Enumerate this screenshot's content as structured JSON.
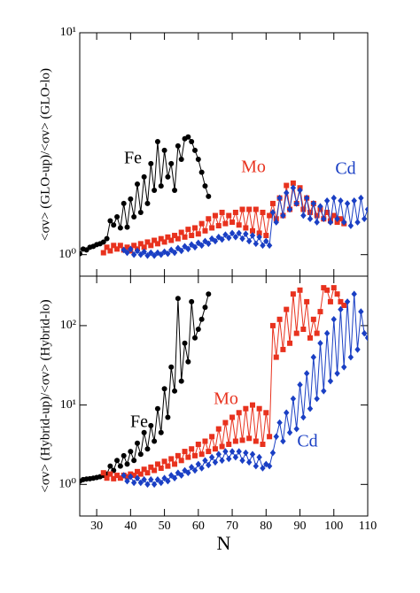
{
  "chart_data": [
    {
      "type": "line",
      "ylabel": "<σv> (GLO-up)/<σv> (GLO-lo)",
      "log_y": true,
      "xlim": [
        25,
        110
      ],
      "ylim": [
        0.8,
        10
      ],
      "yticks": [
        {
          "value": 1,
          "label": "10⁰"
        },
        {
          "value": 10,
          "label": "10¹"
        }
      ],
      "series": [
        {
          "name": "Fe",
          "color": "#000000",
          "marker": "circle",
          "x": [
            25,
            26,
            27,
            28,
            29,
            30,
            31,
            32,
            33,
            34,
            35,
            36,
            37,
            38,
            39,
            40,
            41,
            42,
            43,
            44,
            45,
            46,
            47,
            48,
            49,
            50,
            51,
            52,
            53,
            54,
            55,
            56,
            57,
            58,
            59,
            60,
            61,
            62,
            63
          ],
          "values": [
            1.01,
            1.06,
            1.05,
            1.08,
            1.09,
            1.11,
            1.12,
            1.14,
            1.18,
            1.42,
            1.36,
            1.48,
            1.32,
            1.7,
            1.33,
            1.78,
            1.48,
            2.08,
            1.55,
            2.24,
            1.7,
            2.57,
            1.95,
            3.23,
            2.04,
            2.95,
            2.24,
            2.57,
            1.95,
            3.09,
            2.69,
            3.33,
            3.39,
            3.23,
            2.95,
            2.69,
            2.35,
            2.04,
            1.83
          ]
        },
        {
          "name": "Mo",
          "color": "#e8321e",
          "marker": "square",
          "x": [
            32,
            33,
            34,
            35,
            36,
            37,
            38,
            39,
            40,
            41,
            42,
            43,
            44,
            45,
            46,
            47,
            48,
            49,
            50,
            51,
            52,
            53,
            54,
            55,
            56,
            57,
            58,
            59,
            60,
            61,
            62,
            63,
            64,
            65,
            66,
            67,
            68,
            69,
            70,
            71,
            72,
            73,
            74,
            75,
            76,
            77,
            78,
            79,
            80,
            81,
            82,
            83,
            84,
            85,
            86,
            87,
            88,
            89,
            90,
            91,
            92,
            93,
            94,
            95,
            96,
            97,
            98,
            99,
            100,
            101,
            102,
            103
          ],
          "values": [
            1.02,
            1.08,
            1.04,
            1.1,
            1.06,
            1.1,
            1.05,
            1.08,
            1.04,
            1.1,
            1.06,
            1.12,
            1.08,
            1.14,
            1.1,
            1.16,
            1.12,
            1.18,
            1.14,
            1.2,
            1.16,
            1.22,
            1.18,
            1.26,
            1.2,
            1.3,
            1.22,
            1.32,
            1.24,
            1.38,
            1.28,
            1.45,
            1.32,
            1.5,
            1.35,
            1.55,
            1.38,
            1.5,
            1.4,
            1.55,
            1.36,
            1.6,
            1.32,
            1.6,
            1.28,
            1.6,
            1.25,
            1.55,
            1.22,
            1.5,
            1.7,
            1.45,
            1.8,
            1.5,
            2.05,
            1.6,
            2.1,
            1.7,
            2.0,
            1.6,
            1.8,
            1.55,
            1.7,
            1.5,
            1.6,
            1.45,
            1.55,
            1.42,
            1.5,
            1.4,
            1.45,
            1.38
          ]
        },
        {
          "name": "Cd",
          "color": "#1a3fc4",
          "marker": "diamond",
          "x": [
            38,
            39,
            40,
            41,
            42,
            43,
            44,
            45,
            46,
            47,
            48,
            49,
            50,
            51,
            52,
            53,
            54,
            55,
            56,
            57,
            58,
            59,
            60,
            61,
            62,
            63,
            64,
            65,
            66,
            67,
            68,
            69,
            70,
            71,
            72,
            73,
            74,
            75,
            76,
            77,
            78,
            79,
            80,
            81,
            82,
            83,
            84,
            85,
            86,
            87,
            88,
            89,
            90,
            91,
            92,
            93,
            94,
            95,
            96,
            97,
            98,
            99,
            100,
            101,
            102,
            103,
            104,
            105,
            106,
            107,
            108,
            109,
            110
          ],
          "values": [
            1.05,
            1.02,
            1.06,
            1.0,
            1.04,
            1.0,
            1.03,
            0.99,
            1.02,
            0.99,
            1.02,
            1.0,
            1.03,
            1.01,
            1.05,
            1.02,
            1.07,
            1.04,
            1.09,
            1.06,
            1.11,
            1.08,
            1.13,
            1.1,
            1.15,
            1.12,
            1.18,
            1.15,
            1.2,
            1.17,
            1.23,
            1.19,
            1.25,
            1.2,
            1.25,
            1.18,
            1.24,
            1.15,
            1.22,
            1.12,
            1.2,
            1.1,
            1.15,
            1.1,
            1.55,
            1.4,
            1.8,
            1.5,
            1.9,
            1.6,
            2.0,
            1.7,
            1.95,
            1.5,
            1.8,
            1.45,
            1.7,
            1.4,
            1.65,
            1.45,
            1.75,
            1.4,
            1.8,
            1.45,
            1.75,
            1.4,
            1.7,
            1.35,
            1.75,
            1.4,
            1.8,
            1.45,
            1.6
          ]
        }
      ]
    },
    {
      "type": "line",
      "ylabel": "<σv> (Hybrid-up)/<σv> (Hybrid-lo)",
      "xlabel": "N",
      "log_y": true,
      "xlim": [
        25,
        110
      ],
      "ylim": [
        0.4,
        420
      ],
      "xticks": [
        30,
        40,
        50,
        60,
        70,
        80,
        90,
        100,
        110
      ],
      "yticks": [
        {
          "value": 1,
          "label": "10⁰"
        },
        {
          "value": 10,
          "label": "10¹"
        },
        {
          "value": 100,
          "label": "10²"
        }
      ],
      "series": [
        {
          "name": "Fe",
          "color": "#000000",
          "marker": "circle",
          "x": [
            25,
            26,
            27,
            28,
            29,
            30,
            31,
            32,
            33,
            34,
            35,
            36,
            37,
            38,
            39,
            40,
            41,
            42,
            43,
            44,
            45,
            46,
            47,
            48,
            49,
            50,
            51,
            52,
            53,
            54,
            55,
            56,
            57,
            58,
            59,
            60,
            61,
            62,
            63
          ],
          "values": [
            1.1,
            1.15,
            1.17,
            1.18,
            1.2,
            1.22,
            1.25,
            1.3,
            1.35,
            1.7,
            1.5,
            2.0,
            1.7,
            2.3,
            1.8,
            2.6,
            2.0,
            3.3,
            2.4,
            4.5,
            2.8,
            5.5,
            3.5,
            9,
            4.5,
            16,
            7,
            30,
            15,
            220,
            20,
            60,
            35,
            200,
            70,
            90,
            120,
            170,
            250
          ]
        },
        {
          "name": "Mo",
          "color": "#e8321e",
          "marker": "square",
          "x": [
            32,
            33,
            34,
            35,
            36,
            37,
            38,
            39,
            40,
            41,
            42,
            43,
            44,
            45,
            46,
            47,
            48,
            49,
            50,
            51,
            52,
            53,
            54,
            55,
            56,
            57,
            58,
            59,
            60,
            61,
            62,
            63,
            64,
            65,
            66,
            67,
            68,
            69,
            70,
            71,
            72,
            73,
            74,
            75,
            76,
            77,
            78,
            79,
            80,
            81,
            82,
            83,
            84,
            85,
            86,
            87,
            88,
            89,
            90,
            91,
            92,
            93,
            94,
            95,
            96,
            97,
            98,
            99,
            100,
            101,
            102,
            103
          ],
          "values": [
            1.4,
            1.2,
            1.35,
            1.18,
            1.3,
            1.2,
            1.3,
            1.25,
            1.35,
            1.3,
            1.45,
            1.35,
            1.55,
            1.4,
            1.65,
            1.5,
            1.8,
            1.6,
            1.95,
            1.7,
            2.1,
            1.8,
            2.3,
            2.0,
            2.6,
            2.2,
            2.8,
            2.3,
            3.2,
            2.4,
            3.5,
            2.6,
            4.0,
            2.8,
            5.0,
            3.0,
            6.0,
            3.2,
            7.0,
            3.5,
            8.0,
            3.6,
            9.0,
            3.8,
            10,
            3.5,
            9,
            3.2,
            8,
            4,
            100,
            40,
            120,
            50,
            160,
            60,
            250,
            80,
            280,
            90,
            200,
            70,
            120,
            80,
            150,
            300,
            280,
            200,
            300,
            250,
            200,
            180
          ]
        },
        {
          "name": "Cd",
          "color": "#1a3fc4",
          "marker": "diamond",
          "x": [
            38,
            39,
            40,
            41,
            42,
            43,
            44,
            45,
            46,
            47,
            48,
            49,
            50,
            51,
            52,
            53,
            54,
            55,
            56,
            57,
            58,
            59,
            60,
            61,
            62,
            63,
            64,
            65,
            66,
            67,
            68,
            69,
            70,
            71,
            72,
            73,
            74,
            75,
            76,
            77,
            78,
            79,
            80,
            81,
            82,
            83,
            84,
            85,
            86,
            87,
            88,
            89,
            90,
            91,
            92,
            93,
            94,
            95,
            96,
            97,
            98,
            99,
            100,
            101,
            102,
            103,
            104,
            105,
            106,
            107,
            108,
            109,
            110
          ],
          "values": [
            1.3,
            1.1,
            1.25,
            1.05,
            1.2,
            1.05,
            1.15,
            1.0,
            1.15,
            1.0,
            1.15,
            1.05,
            1.2,
            1.1,
            1.3,
            1.2,
            1.4,
            1.3,
            1.5,
            1.4,
            1.65,
            1.5,
            1.8,
            1.6,
            2.0,
            1.75,
            2.2,
            1.9,
            2.4,
            2.0,
            2.6,
            2.1,
            2.6,
            2.2,
            2.6,
            2.0,
            2.5,
            1.9,
            2.4,
            1.7,
            2.2,
            1.6,
            1.8,
            1.7,
            2.5,
            4,
            6,
            3.5,
            8,
            4.5,
            12,
            5,
            18,
            7,
            25,
            9,
            40,
            12,
            60,
            15,
            80,
            20,
            120,
            25,
            160,
            30,
            200,
            40,
            250,
            50,
            150,
            80,
            70
          ]
        }
      ]
    }
  ]
}
